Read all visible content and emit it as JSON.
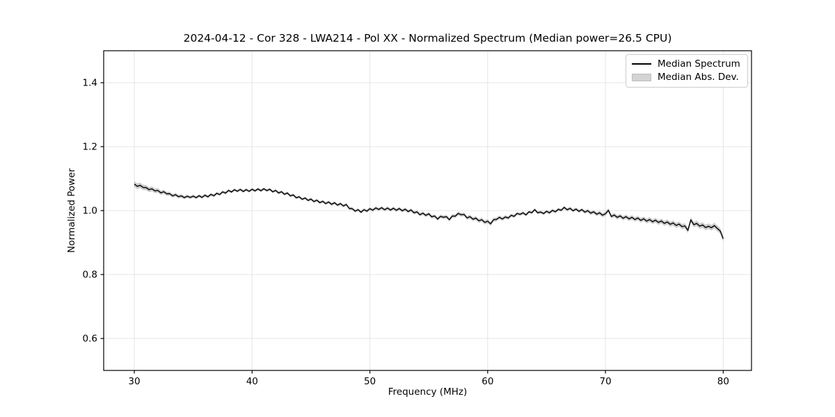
{
  "figure": {
    "background": "#ffffff"
  },
  "chart_data": {
    "type": "line",
    "title": "2024-04-12 - Cor 328 - LWA214 - Pol XX - Normalized Spectrum (Median power=26.5 CPU)",
    "xlabel": "Frequency (MHz)",
    "ylabel": "Normalized Power",
    "xlim": [
      27.4,
      82.4
    ],
    "ylim": [
      0.5,
      1.5
    ],
    "x_ticks": [
      30,
      40,
      50,
      60,
      70,
      80
    ],
    "y_ticks": [
      0.6,
      0.8,
      1.0,
      1.2,
      1.4
    ],
    "grid": true,
    "grid_color": "#e4e4e4",
    "frame_color": "#000000",
    "series": [
      {
        "name": "Median Spectrum",
        "kind": "line",
        "color": "#000000",
        "x_start": 30.0,
        "x_step": 0.25,
        "values": [
          1.083,
          1.076,
          1.079,
          1.0725,
          1.072,
          1.0655,
          1.068,
          1.0615,
          1.063,
          1.0555,
          1.059,
          1.0525,
          1.053,
          1.046,
          1.0497,
          1.0435,
          1.046,
          1.0405,
          1.045,
          1.0411,
          1.0452,
          1.0404,
          1.0465,
          1.0413,
          1.0482,
          1.043,
          1.0507,
          1.0463,
          1.054,
          1.0503,
          1.0585,
          1.0548,
          1.063,
          1.0582,
          1.0653,
          1.0605,
          1.0662,
          1.0598,
          1.0655,
          1.0602,
          1.0668,
          1.0615,
          1.0677,
          1.062,
          1.0682,
          1.0625,
          1.0667,
          1.0588,
          1.063,
          1.055,
          1.059,
          1.051,
          1.055,
          1.046,
          1.049,
          1.04,
          1.043,
          1.0353,
          1.0395,
          1.0318,
          1.036,
          1.0283,
          1.0325,
          1.0248,
          1.029,
          1.0219,
          1.0268,
          1.0196,
          1.0245,
          1.0171,
          1.0218,
          1.0144,
          1.019,
          1.0065,
          1.006,
          0.9983,
          1.0027,
          0.995,
          1.0027,
          0.9983,
          1.006,
          1.0012,
          1.0083,
          1.0035,
          1.009,
          1.0025,
          1.008,
          1.0016,
          1.0073,
          1.0009,
          1.0065,
          0.9994,
          1.0043,
          0.9971,
          1.002,
          0.993,
          0.996,
          0.987,
          0.992,
          0.985,
          0.99,
          0.9805,
          0.983,
          0.9735,
          0.982,
          0.979,
          0.981,
          0.9715,
          0.983,
          0.9825,
          0.991,
          0.987,
          0.988,
          0.977,
          0.981,
          0.973,
          0.9765,
          0.968,
          0.9715,
          0.963,
          0.9668,
          0.9585,
          0.9715,
          0.9725,
          0.979,
          0.9735,
          0.98,
          0.9767,
          0.9853,
          0.982,
          0.991,
          0.988,
          0.993,
          0.9865,
          0.996,
          0.9935,
          1.003,
          0.993,
          0.9955,
          0.9907,
          0.9978,
          0.993,
          1.0007,
          0.9963,
          1.004,
          1.001,
          1.01,
          1.0025,
          1.007,
          0.9995,
          1.0047,
          0.9978,
          1.003,
          0.9953,
          0.9997,
          0.992,
          0.9963,
          0.9887,
          0.993,
          0.9855,
          0.99,
          1.001,
          0.9815,
          0.9861,
          0.9787,
          0.9834,
          0.976,
          0.981,
          0.974,
          0.979,
          0.972,
          0.9768,
          0.9695,
          0.9743,
          0.967,
          0.972,
          0.965,
          0.97,
          0.963,
          0.9675,
          0.96,
          0.9645,
          0.957,
          0.9613,
          0.9535,
          0.9578,
          0.95,
          0.952,
          0.938,
          0.971,
          0.956,
          0.9597,
          0.9513,
          0.955,
          0.947,
          0.951,
          0.9465,
          0.953,
          0.944,
          0.936,
          0.912
        ]
      },
      {
        "name": "Median Abs. Dev.",
        "kind": "band",
        "color": "#c2c2c2",
        "around_series": "Median Spectrum",
        "halfwidth_points": [
          [
            30,
            0.009
          ],
          [
            31,
            0.008
          ],
          [
            33,
            0.006
          ],
          [
            35,
            0.005
          ],
          [
            40,
            0.0045
          ],
          [
            45,
            0.0045
          ],
          [
            48,
            0.005
          ],
          [
            50,
            0.005
          ],
          [
            54,
            0.0055
          ],
          [
            58,
            0.006
          ],
          [
            60,
            0.0065
          ],
          [
            63,
            0.005
          ],
          [
            66,
            0.005
          ],
          [
            68,
            0.0055
          ],
          [
            70,
            0.0065
          ],
          [
            73,
            0.007
          ],
          [
            76,
            0.008
          ],
          [
            78,
            0.0085
          ],
          [
            80,
            0.009
          ]
        ]
      }
    ],
    "legend": {
      "position": "upper right",
      "entries": [
        {
          "label": "Median Spectrum",
          "swatch": "line",
          "color": "#000000"
        },
        {
          "label": "Median Abs. Dev.",
          "swatch": "patch",
          "color": "#d3d3d3"
        }
      ]
    }
  }
}
